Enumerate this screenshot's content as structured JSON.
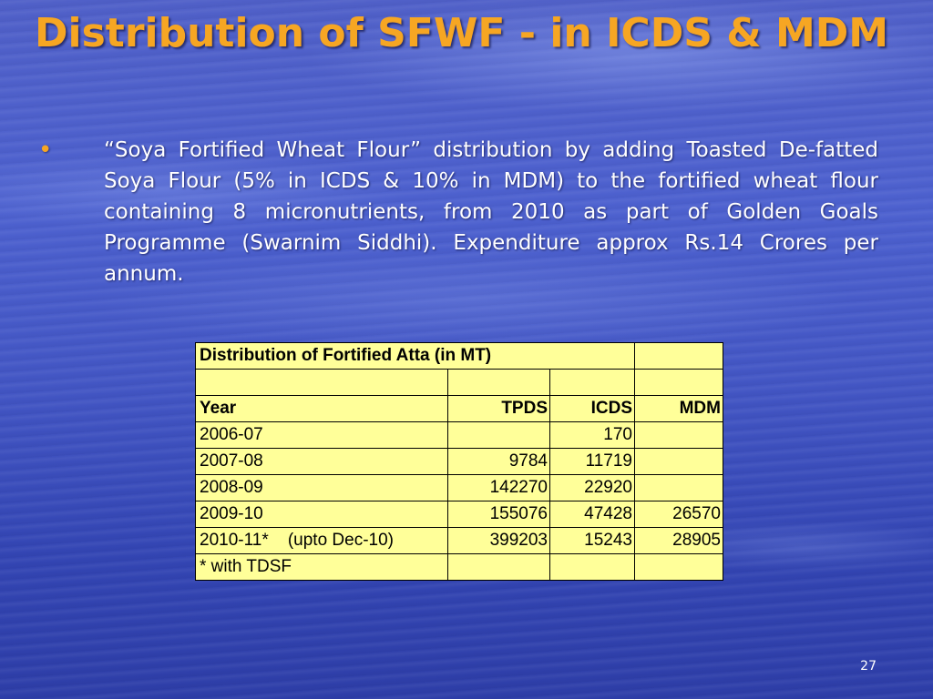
{
  "slide": {
    "title": "Distribution of SFWF - in ICDS & MDM",
    "bullet_symbol": "•",
    "bullet_text": "“Soya Fortified Wheat Flour” distribution by adding Toasted De-fatted Soya Flour (5% in ICDS & 10% in MDM) to the fortified wheat flour containing 8 micronutrients, from 2010 as part of Golden Goals Programme (Swarnim Siddhi). Expenditure approx Rs.14 Crores per annum.",
    "page_number": "27",
    "colors": {
      "title": "#f6a623",
      "bullet": "#f6a623",
      "body_text": "#ffffff",
      "table_background": "#ffff99",
      "background": "#4356c4"
    }
  },
  "table": {
    "caption": "Distribution of Fortified Atta (in MT)",
    "headers": [
      "Year",
      "TPDS",
      "ICDS",
      "MDM"
    ],
    "rows": [
      [
        "2006-07",
        "",
        "170",
        ""
      ],
      [
        "2007-08",
        "9784",
        "11719",
        ""
      ],
      [
        "2008-09",
        "142270",
        "22920",
        ""
      ],
      [
        "2009-10",
        "155076",
        "47428",
        "26570"
      ],
      [
        "2010-11*    (upto Dec-10)",
        "399203",
        "15243",
        "28905"
      ]
    ],
    "footnote": "* with TDSF"
  }
}
